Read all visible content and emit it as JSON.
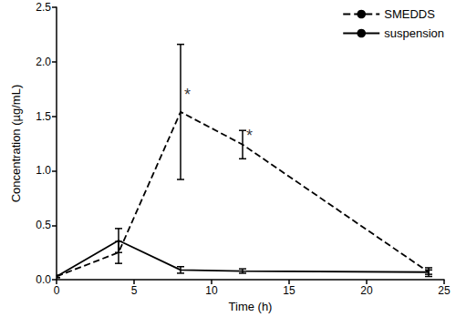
{
  "chart_data": {
    "type": "line",
    "x": [
      0,
      4,
      8,
      12,
      24
    ],
    "series": [
      {
        "name": "SMEDDS",
        "color": "#000000",
        "line_style": "dashed",
        "values": [
          0.03,
          0.25,
          1.54,
          1.24,
          0.07
        ],
        "errors": [
          0.01,
          0.1,
          0.62,
          0.13,
          0.04
        ]
      },
      {
        "name": "suspension",
        "color": "#000000",
        "line_style": "solid",
        "values": [
          0.03,
          0.36,
          0.09,
          0.08,
          0.07
        ],
        "errors": [
          0.01,
          0.11,
          0.03,
          0.02,
          0.02
        ]
      }
    ],
    "x_label": "Time (h)",
    "y_label": "Concentration (µg/mL)",
    "xlim": [
      0,
      25
    ],
    "ylim": [
      0,
      2.5
    ],
    "xticks": [
      0,
      5,
      10,
      15,
      20,
      25
    ],
    "yticks": [
      {
        "value": 0,
        "label": "0.0"
      },
      0.5,
      {
        "value": 1,
        "label": "1.0"
      },
      1.5,
      {
        "value": 2,
        "label": "2.0"
      },
      2.5
    ],
    "annotations": [
      {
        "text": "*",
        "x": 8,
        "y": 1.7
      },
      {
        "text": "*",
        "x": 12,
        "y": 1.32
      }
    ],
    "grid": false,
    "legend": "top-right"
  }
}
